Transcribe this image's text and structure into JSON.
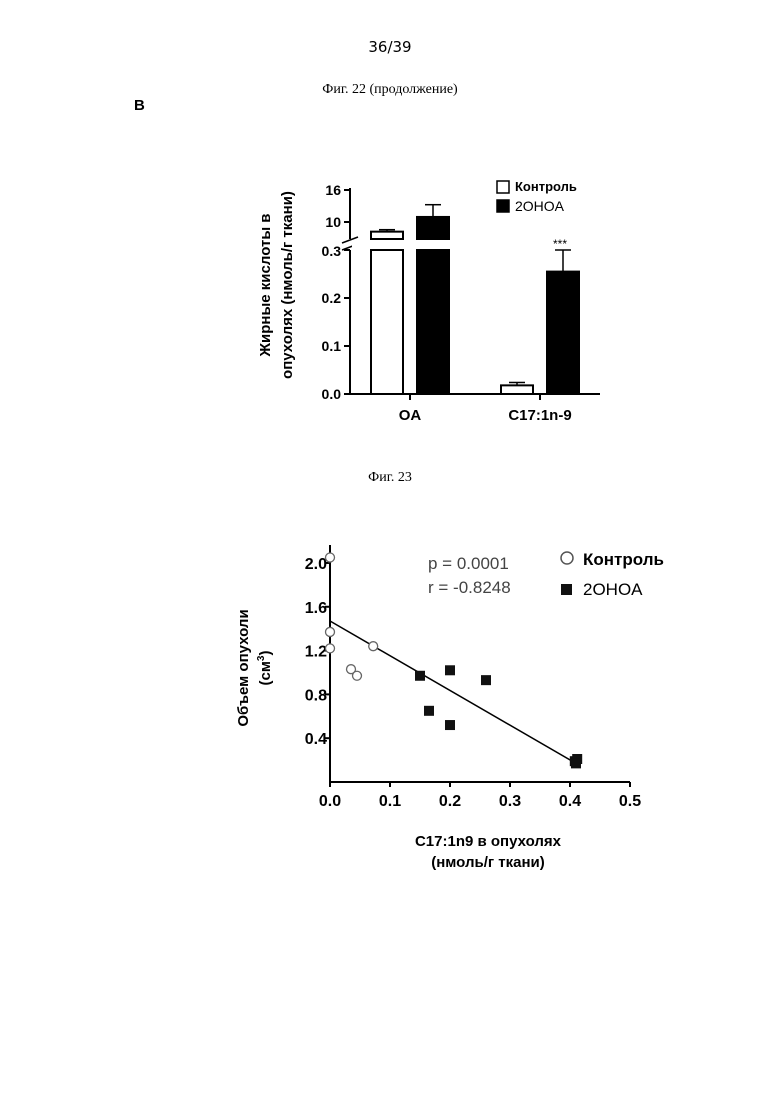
{
  "page": {
    "number": "36/39",
    "fig22_caption": "Фиг. 22 (продолжение)",
    "panel_label": "B",
    "fig23_caption": "Фиг. 23"
  },
  "chart_data": [
    {
      "type": "bar",
      "ylabel_line1": "Жирные кислоты в",
      "ylabel_line2": "опухолях (нмоль/г ткани)",
      "categories": [
        "OA",
        "C17:1n-9"
      ],
      "series": [
        {
          "name": "Контроль",
          "values": [
            7.5,
            0.018
          ],
          "errors": [
            0.4,
            0.006
          ],
          "color": "#ffffff"
        },
        {
          "name": "2OHOA",
          "values": [
            10.5,
            0.255
          ],
          "errors": [
            2.5,
            0.045
          ],
          "color": "#000000"
        }
      ],
      "axis_break": true,
      "lower_ylim": [
        0,
        0.3
      ],
      "lower_ticks": [
        "0.0",
        "0.1",
        "0.2",
        "0.3"
      ],
      "upper_ylim": [
        6,
        16
      ],
      "upper_ticks": [
        "10",
        "16"
      ],
      "annotations": [
        {
          "text": "***",
          "category": "C17:1n-9",
          "series": "2OHOA"
        }
      ],
      "legend_position": "top-right"
    },
    {
      "type": "scatter",
      "xlabel_line1": "C17:1n9 в опухолях",
      "xlabel_line2": "(нмоль/г ткани)",
      "ylabel_line1": "Объем опухоли",
      "ylabel_line2": "(см",
      "ylabel_sup": "3",
      "ylabel_end": ")",
      "xlim": [
        0,
        0.5
      ],
      "ylim": [
        0,
        2.1
      ],
      "xticks": [
        "0.0",
        "0.1",
        "0.2",
        "0.3",
        "0.4",
        "0.5"
      ],
      "yticks": [
        "0.4",
        "0.8",
        "1.2",
        "1.6",
        "2.0"
      ],
      "stats_p": "p = 0.0001",
      "stats_r": "r = -0.8248",
      "series": [
        {
          "name": "Контроль",
          "marker": "open-circle",
          "x": [
            0.0,
            0.0,
            0.0,
            0.035,
            0.045,
            0.072
          ],
          "y": [
            2.05,
            1.37,
            1.22,
            1.03,
            0.97,
            1.24
          ]
        },
        {
          "name": "2OHOA",
          "marker": "filled-square",
          "x": [
            0.15,
            0.165,
            0.2,
            0.2,
            0.26,
            0.408,
            0.412,
            0.41
          ],
          "y": [
            0.97,
            0.65,
            1.02,
            0.52,
            0.93,
            0.19,
            0.21,
            0.17
          ]
        }
      ],
      "regression": {
        "x": [
          0.0,
          0.41
        ],
        "y": [
          1.47,
          0.17
        ]
      },
      "legend_position": "top-right"
    }
  ]
}
